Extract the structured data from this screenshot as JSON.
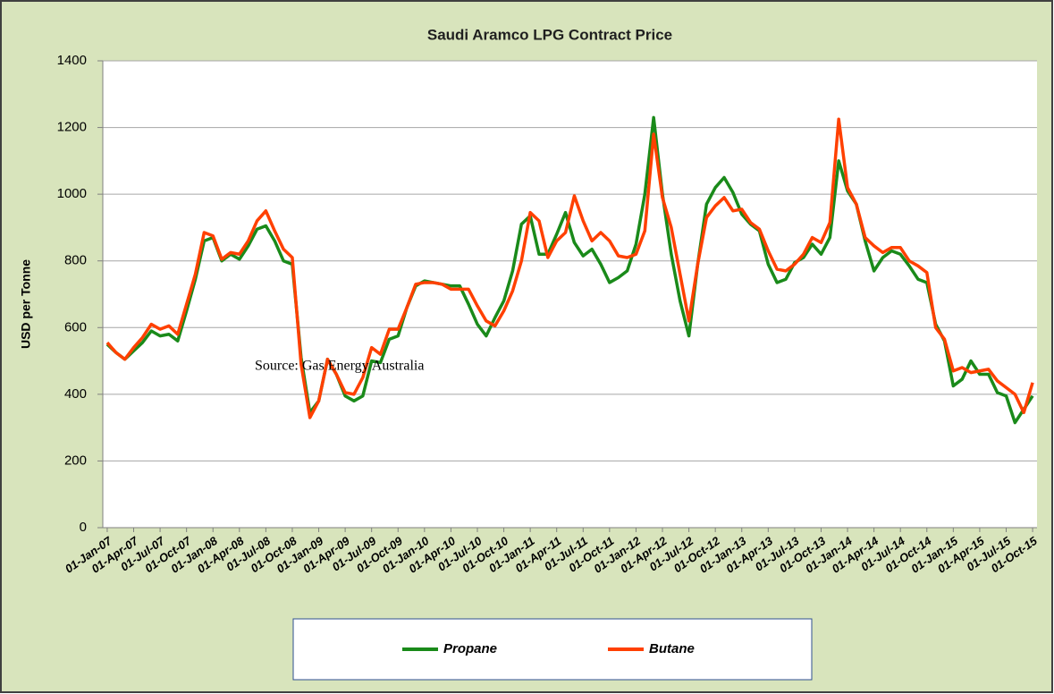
{
  "chart_data": {
    "type": "line",
    "title": "Saudi Aramco LPG Contract Price",
    "y_label": "USD per Tonne",
    "annotation": "Source: Gas Energy Australia",
    "categories": [
      "01-Jan-07",
      null,
      null,
      "01-Apr-07",
      null,
      null,
      "01-Jul-07",
      null,
      null,
      "01-Oct-07",
      null,
      null,
      "01-Jan-08",
      null,
      null,
      "01-Apr-08",
      null,
      null,
      "01-Jul-08",
      null,
      null,
      "01-Oct-08",
      null,
      null,
      "01-Jan-09",
      null,
      null,
      "01-Apr-09",
      null,
      null,
      "01-Jul-09",
      null,
      null,
      "01-Oct-09",
      null,
      null,
      "01-Jan-10",
      null,
      null,
      "01-Apr-10",
      null,
      null,
      "01-Jul-10",
      null,
      null,
      "01-Oct-10",
      null,
      null,
      "01-Jan-11",
      null,
      null,
      "01-Apr-11",
      null,
      null,
      "01-Jul-11",
      null,
      null,
      "01-Oct-11",
      null,
      null,
      "01-Jan-12",
      null,
      null,
      "01-Apr-12",
      null,
      null,
      "01-Jul-12",
      null,
      null,
      "01-Oct-12",
      null,
      null,
      "01-Jan-13",
      null,
      null,
      "01-Apr-13",
      null,
      null,
      "01-Jul-13",
      null,
      null,
      "01-Oct-13",
      null,
      null,
      "01-Jan-14",
      null,
      null,
      "01-Apr-14",
      null,
      null,
      "01-Jul-14",
      null,
      null,
      "01-Oct-14",
      null,
      null,
      "01-Jan-15",
      null,
      null,
      "01-Apr-15",
      null,
      null,
      "01-Jul-15",
      null,
      null,
      "01-Oct-15"
    ],
    "series": [
      {
        "name": "Propane",
        "color": "#1a8a1a",
        "values": [
          550,
          525,
          505,
          530,
          555,
          590,
          575,
          580,
          560,
          650,
          745,
          860,
          870,
          800,
          820,
          805,
          845,
          895,
          905,
          860,
          800,
          790,
          510,
          345,
          380,
          505,
          460,
          395,
          380,
          395,
          500,
          495,
          565,
          575,
          660,
          725,
          740,
          735,
          730,
          725,
          725,
          670,
          610,
          575,
          630,
          680,
          770,
          910,
          935,
          820,
          820,
          880,
          945,
          855,
          815,
          835,
          790,
          735,
          750,
          770,
          850,
          1000,
          1230,
          1000,
          820,
          680,
          575,
          790,
          970,
          1020,
          1050,
          1005,
          940,
          910,
          890,
          790,
          735,
          745,
          795,
          810,
          850,
          820,
          870,
          1100,
          1010,
          970,
          860,
          770,
          810,
          830,
          820,
          785,
          745,
          735,
          610,
          560,
          425,
          445,
          500,
          460,
          460,
          405,
          395,
          315,
          355,
          395
        ]
      },
      {
        "name": "Butane",
        "color": "#ff4000",
        "values": [
          555,
          525,
          505,
          540,
          570,
          610,
          595,
          605,
          580,
          670,
          760,
          885,
          875,
          805,
          825,
          820,
          860,
          920,
          950,
          890,
          835,
          810,
          490,
          330,
          380,
          505,
          460,
          405,
          400,
          450,
          540,
          520,
          595,
          595,
          660,
          730,
          735,
          735,
          730,
          715,
          715,
          715,
          665,
          620,
          605,
          650,
          710,
          800,
          945,
          920,
          810,
          860,
          885,
          995,
          920,
          860,
          885,
          860,
          815,
          810,
          820,
          890,
          1180,
          990,
          900,
          760,
          620,
          790,
          930,
          965,
          990,
          950,
          955,
          915,
          895,
          830,
          775,
          770,
          790,
          820,
          870,
          855,
          915,
          1225,
          1020,
          970,
          870,
          845,
          825,
          840,
          840,
          800,
          785,
          765,
          600,
          565,
          470,
          480,
          465,
          470,
          475,
          440,
          420,
          400,
          345,
          435
        ]
      }
    ],
    "ylim": [
      0,
      1400
    ],
    "yticks": [
      0,
      200,
      400,
      600,
      800,
      1000,
      1200,
      1400
    ],
    "grid": true,
    "legend": "bottom"
  }
}
